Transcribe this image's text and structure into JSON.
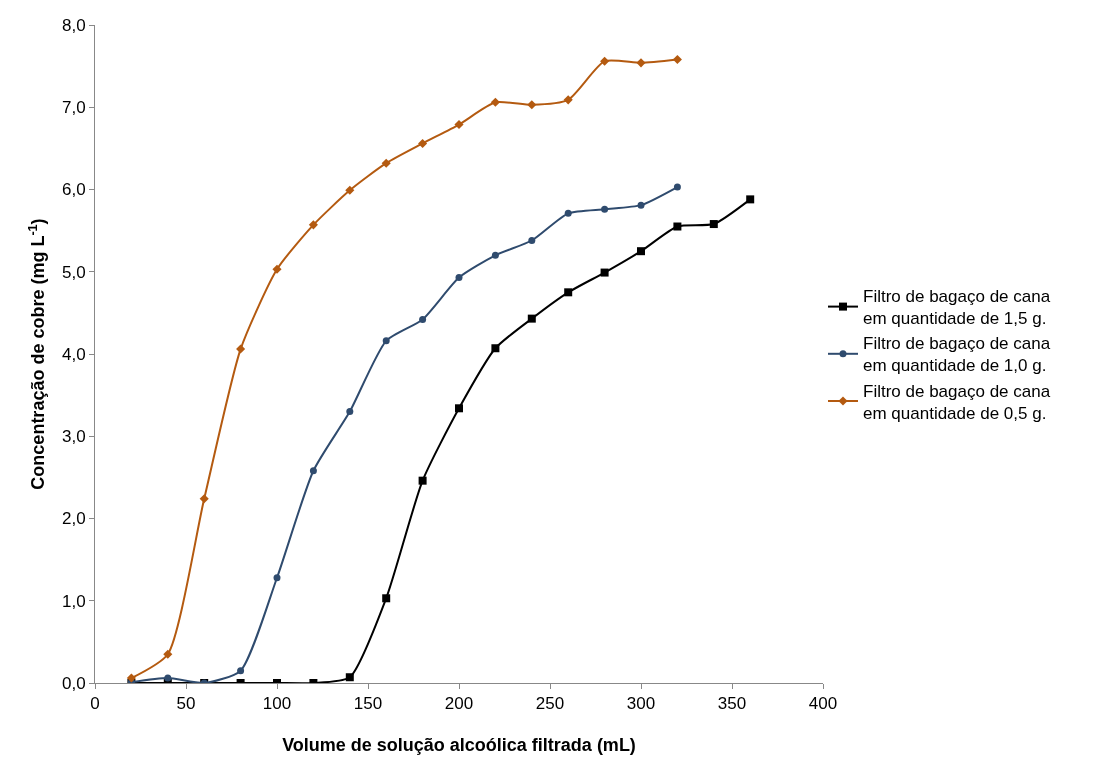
{
  "chart_data": {
    "type": "line",
    "xlabel": "Volume de solução alcoólica filtrada (mL)",
    "ylabel": "Concentração de cobre (mg L$^{-1}$)",
    "xlim": [
      0,
      400
    ],
    "xticks": [
      0,
      50,
      100,
      150,
      200,
      250,
      300,
      350,
      400
    ],
    "ylim": [
      0,
      8
    ],
    "yticks": [
      {
        "value": 0,
        "label": "0,0"
      },
      {
        "value": 1,
        "label": "1,0"
      },
      {
        "value": 2,
        "label": "2,0"
      },
      {
        "value": 3,
        "label": "3,0"
      },
      {
        "value": 4,
        "label": "4,0"
      },
      {
        "value": 5,
        "label": "5,0"
      },
      {
        "value": 6,
        "label": "6,0"
      },
      {
        "value": 7,
        "label": "7,0"
      },
      {
        "value": 8,
        "label": "8,0"
      }
    ],
    "legend": "right",
    "series": [
      {
        "name": "Filtro de bagaço de cana em quantidade de 1,5 g.",
        "color": "#000000",
        "marker": "square",
        "x": [
          20,
          40,
          60,
          80,
          100,
          120,
          140,
          160,
          180,
          200,
          220,
          240,
          260,
          280,
          300,
          320,
          340,
          360
        ],
        "values": [
          0,
          0,
          0,
          0,
          0,
          0,
          0.07,
          1.03,
          2.46,
          3.34,
          4.07,
          4.43,
          4.75,
          4.99,
          5.25,
          5.55,
          5.58,
          5.88
        ]
      },
      {
        "name": "Filtro de bagaço de cana em quantidade de 1,0 g.",
        "color": "#2f4b6e",
        "marker": "circle",
        "x": [
          20,
          40,
          60,
          80,
          100,
          120,
          140,
          160,
          180,
          200,
          220,
          240,
          260,
          280,
          300,
          320
        ],
        "values": [
          0.01,
          0.06,
          0,
          0.15,
          1.28,
          2.58,
          3.3,
          4.16,
          4.42,
          4.93,
          5.2,
          5.38,
          5.71,
          5.76,
          5.81,
          6.03
        ]
      },
      {
        "name": "Filtro de bagaço de cana em quantidade de 0,5 g.",
        "color": "#b45a10",
        "marker": "diamond",
        "x": [
          20,
          40,
          60,
          80,
          100,
          120,
          140,
          160,
          180,
          200,
          220,
          240,
          260,
          280,
          300,
          320
        ],
        "values": [
          0.06,
          0.35,
          2.24,
          4.06,
          5.03,
          5.57,
          5.99,
          6.32,
          6.56,
          6.79,
          7.06,
          7.03,
          7.09,
          7.56,
          7.54,
          7.58
        ]
      }
    ]
  }
}
